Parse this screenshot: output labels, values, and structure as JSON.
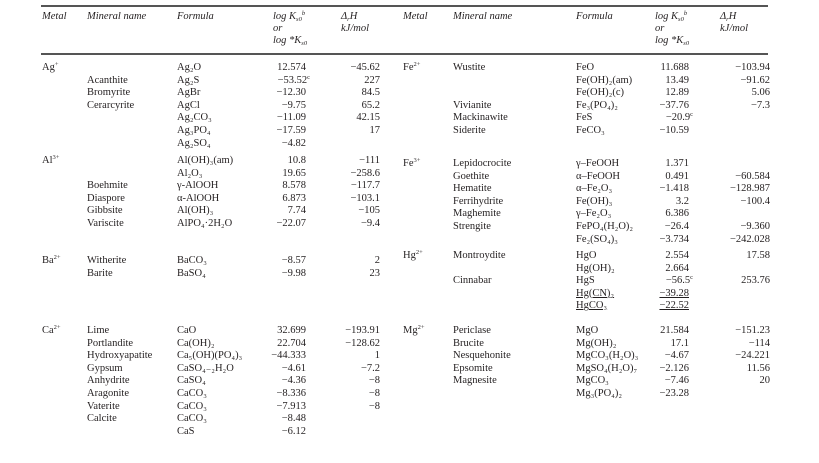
{
  "table": {
    "headers": {
      "metal": "Metal",
      "mineral_name": "Mineral name",
      "formula": "Formula",
      "logk_line1": "log K",
      "logk_line1_sub": "s0",
      "logk_line1_sup": "b",
      "logk_line2": "or",
      "logk_line3": "log *K",
      "logk_line3_sub": "s0",
      "dh_line1": "Δ",
      "dh_line1_sub": "r",
      "dh_line1_rest": "H",
      "dh_line2": "kJ/mol"
    },
    "left_groups": [
      {
        "metal": "Ag",
        "metal_charge": "+",
        "rows": [
          {
            "mineral": "",
            "formula": "Ag₂O",
            "logk": "12.574",
            "dh": "−45.62"
          },
          {
            "mineral": "Acanthite",
            "formula": "Ag₂S",
            "logk": "−53.52",
            "logk_note": "c",
            "dh": "227"
          },
          {
            "mineral": "Bromyrite",
            "formula": "AgBr",
            "logk": "−12.30",
            "dh": "84.5"
          },
          {
            "mineral": "Cerarcyrite",
            "formula": "AgCl",
            "logk": "−9.75",
            "dh": "65.2"
          },
          {
            "mineral": "",
            "formula": "Ag₂CO₃",
            "logk": "−11.09",
            "dh": "42.15"
          },
          {
            "mineral": "",
            "formula": "Ag₃PO₄",
            "logk": "−17.59",
            "dh": "17"
          },
          {
            "mineral": "",
            "formula": "Ag₂SO₄",
            "logk": "−4.82",
            "dh": ""
          }
        ]
      },
      {
        "metal": "Al",
        "metal_charge": "3+",
        "rows": [
          {
            "mineral": "",
            "formula": "Al(OH)₃(am)",
            "logk": "10.8",
            "dh": "−111"
          },
          {
            "mineral": "",
            "formula": "Al₂O₃",
            "logk": "19.65",
            "dh": "−258.6"
          },
          {
            "mineral": "Boehmite",
            "formula": "γ-AlOOH",
            "logk": "8.578",
            "dh": "−117.7"
          },
          {
            "mineral": "Diaspore",
            "formula": "α-AlOOH",
            "logk": "6.873",
            "dh": "−103.1"
          },
          {
            "mineral": "Gibbsite",
            "formula": "Al(OH)₃",
            "logk": "7.74",
            "dh": "−105"
          },
          {
            "mineral": "Variscite",
            "formula": "AlPO₄·2H₂O",
            "logk": "−22.07",
            "dh": "−9.4"
          }
        ]
      },
      {
        "metal": "Ba",
        "metal_charge": "2+",
        "rows": [
          {
            "mineral": "Witherite",
            "formula": "BaCO₃",
            "logk": "−8.57",
            "dh": "2"
          },
          {
            "mineral": "Barite",
            "formula": "BaSO₄",
            "logk": "−9.98",
            "dh": "23"
          }
        ]
      },
      {
        "metal": "Ca",
        "metal_charge": "2+",
        "rows": [
          {
            "mineral": "Lime",
            "formula": "CaO",
            "logk": "32.699",
            "dh": "−193.91"
          },
          {
            "mineral": "Portlandite",
            "formula": "Ca(OH)₂",
            "logk": "22.704",
            "dh": "−128.62"
          },
          {
            "mineral": "Hydroxyapatite",
            "formula": "Ca₅(OH)(PO₄)₃",
            "logk": "−44.333",
            "dh": "1"
          },
          {
            "mineral": "Gypsum",
            "formula": "CaSO₄₋₂H₂O",
            "logk": "−4.61",
            "dh": "−7.2"
          },
          {
            "mineral": "Anhydrite",
            "formula": "CaSO₄",
            "logk": "−4.36",
            "dh": "−8"
          },
          {
            "mineral": "Aragonite",
            "formula": "CaCO₃",
            "logk": "−8.336",
            "dh": "−8"
          },
          {
            "mineral": "Vaterite",
            "formula": "CaCO₃",
            "logk": "−7.913",
            "dh": "−8"
          },
          {
            "mineral": "Calcite",
            "formula": "CaCO₃",
            "logk": "−8.48",
            "dh": ""
          },
          {
            "mineral": "",
            "formula": "CaS",
            "logk": "−6.12",
            "dh": ""
          }
        ]
      }
    ],
    "right_groups": [
      {
        "metal": "Fe",
        "metal_charge": "2+",
        "rows": [
          {
            "mineral": "Wustite",
            "formula": "FeO",
            "logk": "11.688",
            "dh": "−103.94"
          },
          {
            "mineral": "",
            "formula": "Fe(OH)₂(am)",
            "logk": "13.49",
            "dh": "−91.62"
          },
          {
            "mineral": "",
            "formula": "Fe(OH)₂(c)",
            "logk": "12.89",
            "dh": "5.06"
          },
          {
            "mineral": "Vivianite",
            "formula": "Fe₃(PO₄)₂",
            "logk": "−37.76",
            "dh": "−7.3"
          },
          {
            "mineral": "Mackinawite",
            "formula": "FeS",
            "logk": "−20.9",
            "logk_note": "c",
            "dh": ""
          },
          {
            "mineral": "Siderite",
            "formula": "FeCO₃",
            "logk": "−10.59",
            "dh": ""
          }
        ]
      },
      {
        "metal": "Fe",
        "metal_charge": "3+",
        "rows": [
          {
            "mineral": "Lepidocrocite",
            "formula": "γ–FeOOH",
            "logk": "1.371",
            "dh": ""
          },
          {
            "mineral": "Goethite",
            "formula": "α–FeOOH",
            "logk": "0.491",
            "dh": "−60.584"
          },
          {
            "mineral": "Hematite",
            "formula": "α–Fe₂O₃",
            "logk": "−1.418",
            "dh": "−128.987"
          },
          {
            "mineral": "Ferrihydrite",
            "formula": "Fe(OH)₃",
            "logk": "3.2",
            "dh": "−100.4"
          },
          {
            "mineral": "Maghemite",
            "formula": "γ–Fe₂O₃",
            "logk": "6.386",
            "dh": ""
          },
          {
            "mineral": "Strengite",
            "formula": "FePO₄(H₂O)₂",
            "logk": "−26.4",
            "dh": "−9.360"
          },
          {
            "mineral": "",
            "formula": "Fe₂(SO₄)₃",
            "logk": "−3.734",
            "dh": "−242.028"
          }
        ]
      },
      {
        "metal": "Hg",
        "metal_charge": "2+",
        "rows": [
          {
            "mineral": "Montroydite",
            "formula": "HgO",
            "logk": "2.554",
            "dh": "17.58"
          },
          {
            "mineral": "",
            "formula": "Hg(OH)₂",
            "logk": "2.664",
            "dh": ""
          },
          {
            "mineral": "Cinnabar",
            "formula": "HgS",
            "logk": "−56.5",
            "logk_note": "c",
            "dh": "253.76"
          },
          {
            "mineral": "",
            "formula": "Hg(CN)₂",
            "logk": "−39.28",
            "dh": "",
            "underlined": true
          },
          {
            "mineral": "",
            "formula": "HgCO₃",
            "logk": "−22.52",
            "dh": "",
            "underlined": true
          }
        ]
      },
      {
        "metal": "Mg",
        "metal_charge": "2+",
        "rows": [
          {
            "mineral": "Periclase",
            "formula": "MgO",
            "logk": "21.584",
            "dh": "−151.23"
          },
          {
            "mineral": "Brucite",
            "formula": "Mg(OH)₂",
            "logk": "17.1",
            "dh": "−114"
          },
          {
            "mineral": "Nesquehonite",
            "formula": "MgCO₃(H₂O)₃",
            "logk": "−4.67",
            "dh": "−24.221"
          },
          {
            "mineral": "Epsomite",
            "formula": "MgSO₄(H₂O)₇",
            "logk": "−2.126",
            "dh": "11.56"
          },
          {
            "mineral": "Magnesite",
            "formula": "MgCO₃",
            "logk": "−7.46",
            "dh": "20"
          },
          {
            "mineral": "",
            "formula": "Mg₃(PO₄)₂",
            "logk": "−23.28",
            "dh": ""
          }
        ]
      }
    ]
  }
}
